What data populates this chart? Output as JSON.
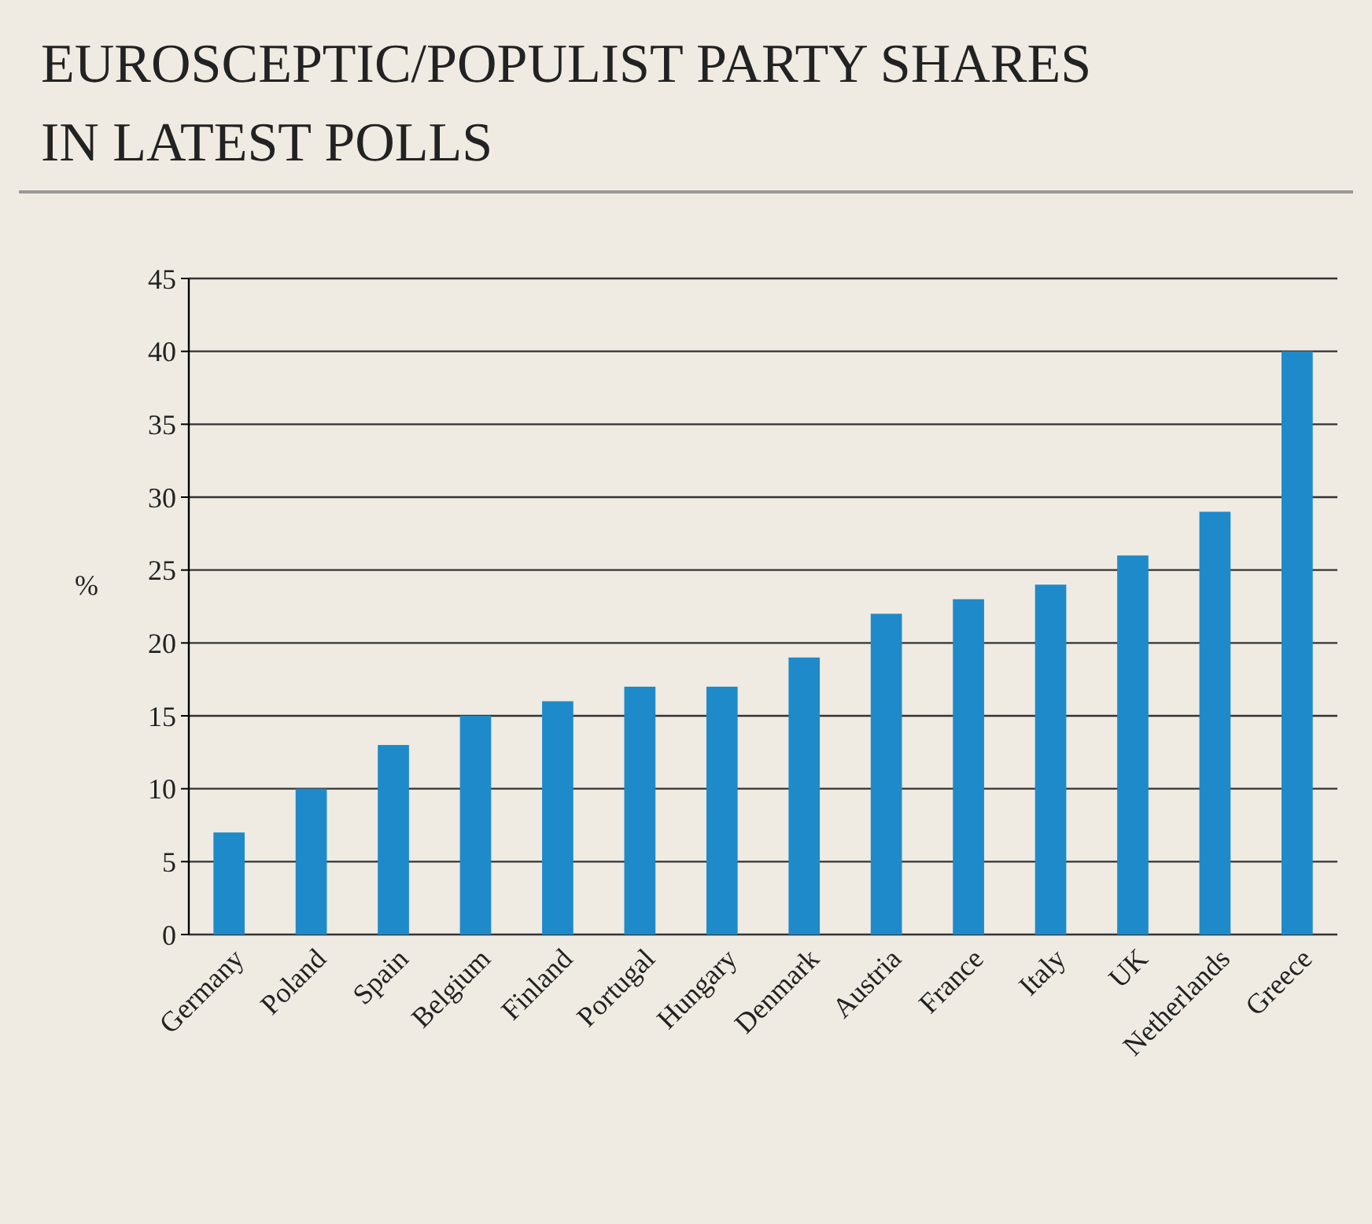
{
  "chart_data": {
    "type": "bar",
    "title": "EUROSCEPTIC/POPULIST PARTY SHARES IN LATEST POLLS",
    "ylabel": "%",
    "categories": [
      "Germany",
      "Poland",
      "Spain",
      "Belgium",
      "Finland",
      "Portugal",
      "Hungary",
      "Denmark",
      "Austria",
      "France",
      "Italy",
      "UK",
      "Netherlands",
      "Greece"
    ],
    "values": [
      7,
      10,
      13,
      15,
      16,
      17,
      17,
      19,
      22,
      23,
      24,
      26,
      29,
      40
    ],
    "color": "#1f8ac9",
    "ylim": [
      0,
      45
    ],
    "yticks": [
      0,
      5,
      10,
      15,
      20,
      25,
      30,
      35,
      40,
      45
    ],
    "grid": "y"
  }
}
